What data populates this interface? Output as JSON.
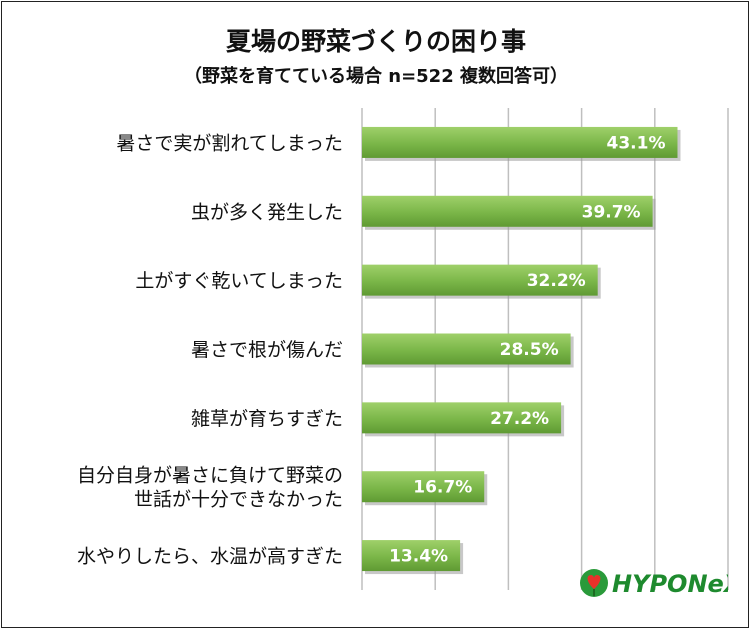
{
  "chart_data": {
    "type": "bar",
    "orientation": "horizontal",
    "title": "夏場の野菜づくりの困り事",
    "subtitle": "（野菜を育てている場合 n=522 複数回答可）",
    "categories": [
      [
        "暑さで実が割れてしまった"
      ],
      [
        "虫が多く発生した"
      ],
      [
        "土がすぐ乾いてしまった"
      ],
      [
        "暑さで根が傷んだ"
      ],
      [
        "雑草が育ちすぎた"
      ],
      [
        "自分自身が暑さに負けて野菜の",
        "世話が十分できなかった"
      ],
      [
        "水やりしたら、水温が高すぎた"
      ]
    ],
    "values": [
      43.1,
      39.7,
      32.2,
      28.5,
      27.2,
      16.7,
      13.4
    ],
    "value_labels": [
      "43.1%",
      "39.7%",
      "32.2%",
      "28.5%",
      "27.2%",
      "16.7%",
      "13.4%"
    ],
    "xlim": [
      0,
      50
    ],
    "grid": true,
    "bar_color": "#7ab648",
    "legend": "none"
  },
  "logo": {
    "text": "HYPONeX",
    "color": "#1e8a2e"
  }
}
